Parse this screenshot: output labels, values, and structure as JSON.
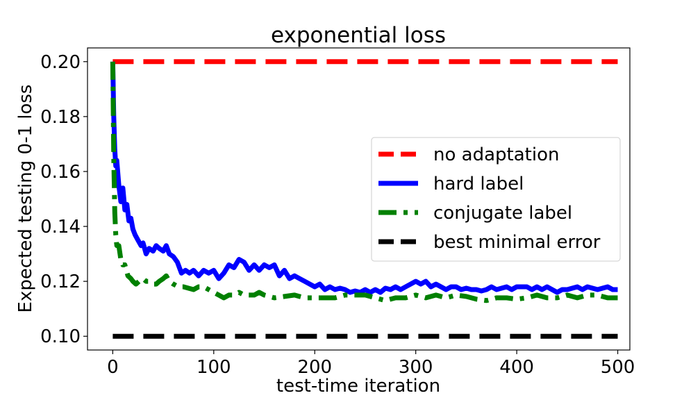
{
  "chart_data": {
    "type": "line",
    "title": "exponential loss",
    "xlabel": "test-time iteration",
    "ylabel": "Expected testing 0-1 loss",
    "xlim": [
      -25,
      512
    ],
    "ylim": [
      0.095,
      0.205
    ],
    "xticks": [
      0,
      100,
      200,
      300,
      400,
      500
    ],
    "xtick_labels": [
      "0",
      "100",
      "200",
      "300",
      "400",
      "500"
    ],
    "yticks": [
      0.1,
      0.12,
      0.14,
      0.16,
      0.18,
      0.2
    ],
    "ytick_labels": [
      "0.10",
      "0.12",
      "0.14",
      "0.16",
      "0.18",
      "0.20"
    ],
    "grid": false,
    "legend_position": "center-right",
    "series": [
      {
        "name": "no adaptation",
        "color": "#ff0000",
        "style": "dashed",
        "x": [
          0,
          500
        ],
        "values": [
          0.2,
          0.2
        ]
      },
      {
        "name": "hard label",
        "color": "#0000ff",
        "style": "solid",
        "x": [
          0,
          1,
          2,
          3,
          4,
          6,
          8,
          10,
          12,
          14,
          16,
          18,
          20,
          22,
          25,
          28,
          30,
          33,
          36,
          40,
          43,
          46,
          50,
          53,
          56,
          60,
          64,
          68,
          72,
          76,
          80,
          85,
          90,
          95,
          100,
          105,
          110,
          115,
          120,
          125,
          130,
          135,
          140,
          145,
          150,
          155,
          160,
          165,
          170,
          175,
          180,
          185,
          190,
          195,
          200,
          205,
          210,
          215,
          220,
          225,
          230,
          235,
          240,
          245,
          250,
          255,
          260,
          265,
          270,
          275,
          280,
          285,
          290,
          295,
          300,
          305,
          310,
          315,
          320,
          325,
          330,
          335,
          340,
          345,
          350,
          355,
          360,
          365,
          370,
          375,
          380,
          385,
          390,
          395,
          400,
          405,
          410,
          415,
          420,
          425,
          430,
          435,
          440,
          445,
          450,
          455,
          460,
          465,
          470,
          475,
          480,
          485,
          490,
          495,
          500
        ],
        "values": [
          0.2,
          0.18,
          0.168,
          0.162,
          0.164,
          0.155,
          0.149,
          0.154,
          0.146,
          0.148,
          0.142,
          0.143,
          0.139,
          0.137,
          0.135,
          0.133,
          0.134,
          0.13,
          0.132,
          0.131,
          0.133,
          0.132,
          0.131,
          0.133,
          0.13,
          0.129,
          0.127,
          0.123,
          0.124,
          0.123,
          0.124,
          0.122,
          0.124,
          0.123,
          0.124,
          0.121,
          0.123,
          0.126,
          0.125,
          0.128,
          0.127,
          0.124,
          0.126,
          0.124,
          0.126,
          0.125,
          0.126,
          0.122,
          0.124,
          0.121,
          0.122,
          0.121,
          0.12,
          0.119,
          0.118,
          0.119,
          0.117,
          0.118,
          0.117,
          0.1175,
          0.117,
          0.116,
          0.1165,
          0.116,
          0.117,
          0.116,
          0.117,
          0.116,
          0.1175,
          0.117,
          0.118,
          0.117,
          0.118,
          0.119,
          0.12,
          0.119,
          0.12,
          0.118,
          0.119,
          0.118,
          0.117,
          0.118,
          0.118,
          0.117,
          0.1175,
          0.117,
          0.117,
          0.1165,
          0.117,
          0.118,
          0.117,
          0.1175,
          0.118,
          0.117,
          0.118,
          0.118,
          0.118,
          0.117,
          0.118,
          0.117,
          0.118,
          0.117,
          0.116,
          0.117,
          0.117,
          0.1175,
          0.118,
          0.117,
          0.118,
          0.1175,
          0.117,
          0.1175,
          0.118,
          0.117,
          0.117
        ]
      },
      {
        "name": "conjugate label",
        "color": "#008000",
        "style": "dashdot",
        "x": [
          0,
          1,
          2,
          3,
          4,
          6,
          8,
          10,
          12,
          15,
          18,
          20,
          23,
          26,
          30,
          33,
          36,
          40,
          43,
          46,
          50,
          53,
          56,
          60,
          65,
          70,
          75,
          80,
          85,
          90,
          95,
          100,
          105,
          110,
          115,
          120,
          125,
          130,
          135,
          140,
          145,
          150,
          160,
          170,
          180,
          190,
          200,
          210,
          220,
          230,
          240,
          250,
          260,
          270,
          280,
          290,
          300,
          310,
          320,
          330,
          340,
          350,
          360,
          370,
          380,
          390,
          400,
          410,
          420,
          430,
          440,
          450,
          460,
          470,
          480,
          490,
          500
        ],
        "values": [
          0.2,
          0.165,
          0.145,
          0.137,
          0.133,
          0.133,
          0.128,
          0.126,
          0.126,
          0.122,
          0.121,
          0.12,
          0.119,
          0.12,
          0.121,
          0.12,
          0.12,
          0.119,
          0.119,
          0.12,
          0.121,
          0.122,
          0.12,
          0.119,
          0.118,
          0.118,
          0.1175,
          0.117,
          0.118,
          0.118,
          0.117,
          0.116,
          0.115,
          0.114,
          0.115,
          0.115,
          0.116,
          0.115,
          0.115,
          0.115,
          0.116,
          0.115,
          0.114,
          0.1145,
          0.115,
          0.114,
          0.114,
          0.114,
          0.114,
          0.115,
          0.115,
          0.115,
          0.114,
          0.113,
          0.114,
          0.114,
          0.115,
          0.114,
          0.115,
          0.114,
          0.115,
          0.1145,
          0.1135,
          0.113,
          0.114,
          0.114,
          0.1135,
          0.114,
          0.115,
          0.114,
          0.114,
          0.115,
          0.114,
          0.115,
          0.115,
          0.114,
          0.114
        ]
      },
      {
        "name": "best minimal error",
        "color": "#000000",
        "style": "dashed",
        "x": [
          0,
          500
        ],
        "values": [
          0.1,
          0.1
        ]
      }
    ]
  }
}
